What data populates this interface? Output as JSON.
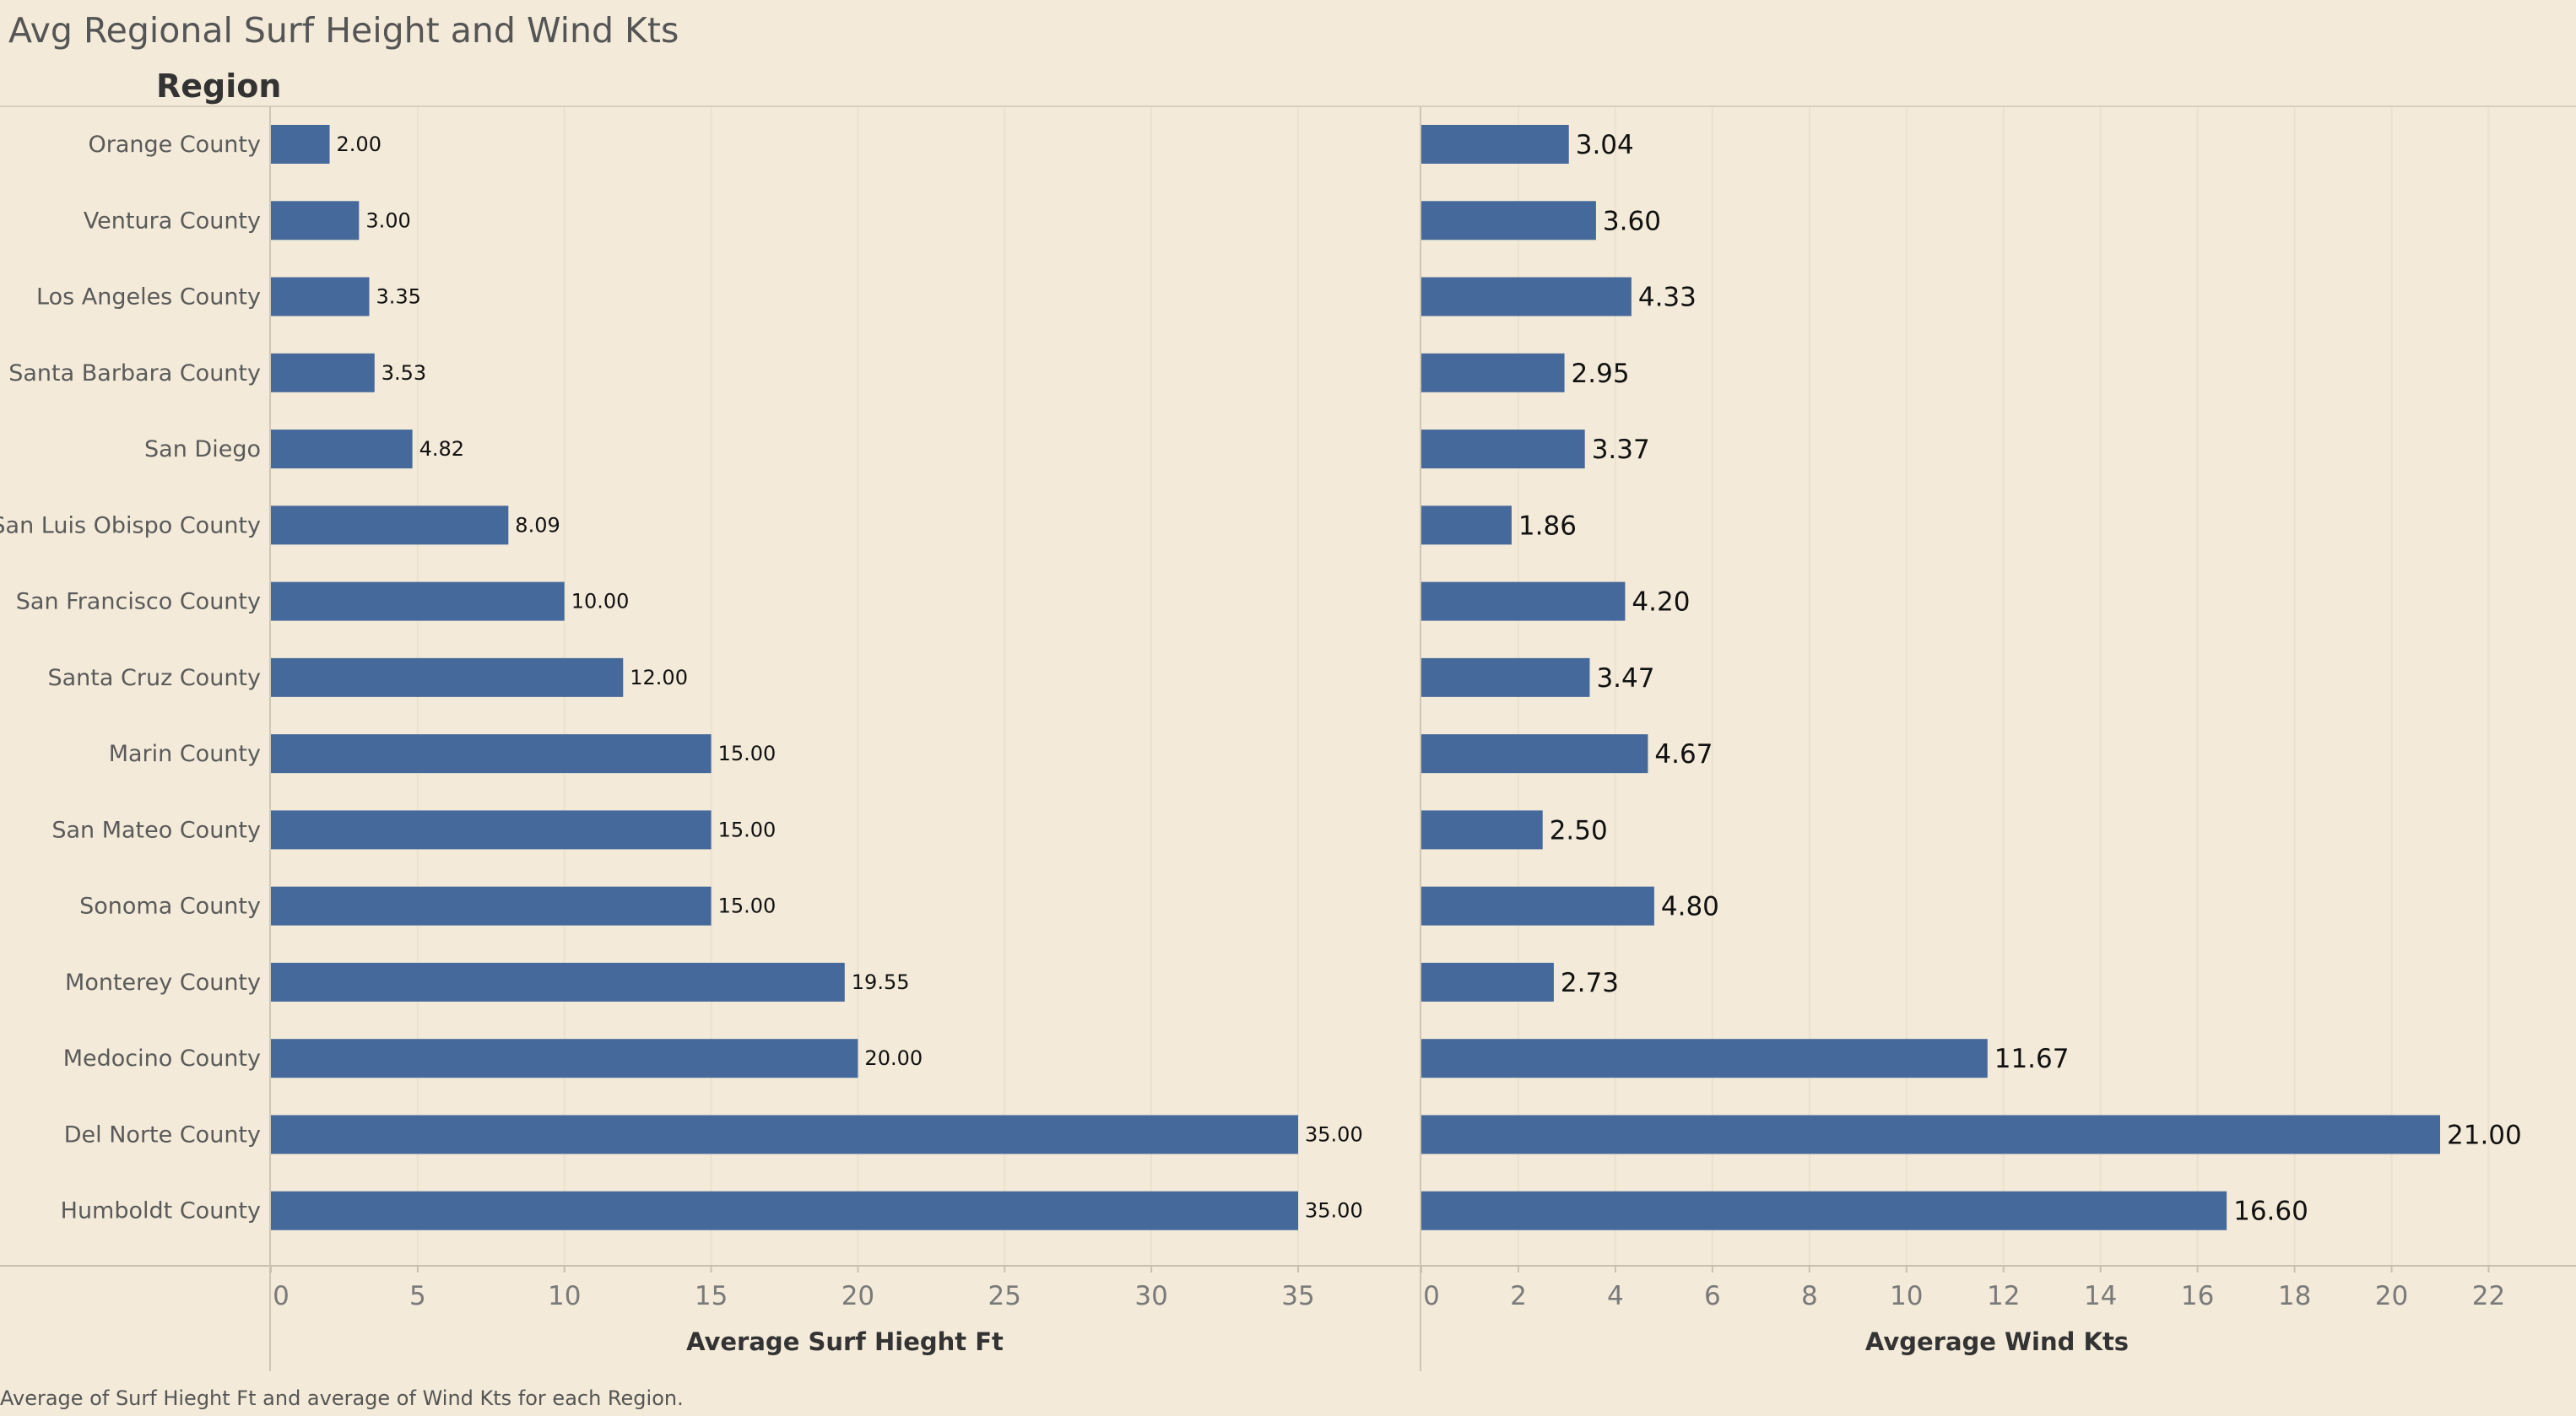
{
  "title": "Avg Regional Surf Height and Wind Kts",
  "footnote": "Average of Surf Hieght Ft and average of Wind Kts for each Region.",
  "chart_data": {
    "type": "bar",
    "orientation": "horizontal",
    "row_header": "Region",
    "categories": [
      "Orange County",
      "Ventura County",
      "Los Angeles County",
      "Santa Barbara County",
      "San Diego",
      "San Luis Obispo County",
      "San Francisco County",
      "Santa Cruz County",
      "Marin County",
      "San Mateo County",
      "Sonoma County",
      "Monterey County",
      "Medocino County",
      "Del Norte County",
      "Humboldt County"
    ],
    "panels": [
      {
        "xlabel": "Average Surf Hieght Ft",
        "xlim": [
          0,
          37.5
        ],
        "ticks": [
          "0",
          "5",
          "10",
          "15",
          "20",
          "25",
          "30",
          "35"
        ],
        "values": [
          2.0,
          3.0,
          3.35,
          3.53,
          4.82,
          8.09,
          10.0,
          12.0,
          15.0,
          15.0,
          15.0,
          19.55,
          20.0,
          35.0,
          35.0
        ],
        "labels": [
          "2.00",
          "3.00",
          "3.35",
          "3.53",
          "4.82",
          "8.09",
          "10.00",
          "12.00",
          "15.00",
          "15.00",
          "15.00",
          "19.55",
          "20.00",
          "35.00",
          "35.00"
        ]
      },
      {
        "xlabel": "Avgerage Wind Kts",
        "xlim": [
          0,
          23.5
        ],
        "ticks": [
          "0",
          "2",
          "4",
          "6",
          "8",
          "10",
          "12",
          "14",
          "16",
          "18",
          "20",
          "22"
        ],
        "values": [
          3.04,
          3.6,
          4.33,
          2.95,
          3.37,
          1.86,
          4.2,
          3.47,
          4.67,
          2.5,
          4.8,
          2.73,
          11.67,
          21.0,
          16.6
        ],
        "labels": [
          "3.04",
          "3.60",
          "4.33",
          "2.95",
          "3.37",
          "1.86",
          "4.20",
          "3.47",
          "4.67",
          "2.50",
          "4.80",
          "2.73",
          "11.67",
          "21.00",
          "16.60"
        ]
      }
    ],
    "bar_color": "#46699b",
    "background_color": "#f3ead9",
    "grid": true,
    "legend": "none"
  }
}
